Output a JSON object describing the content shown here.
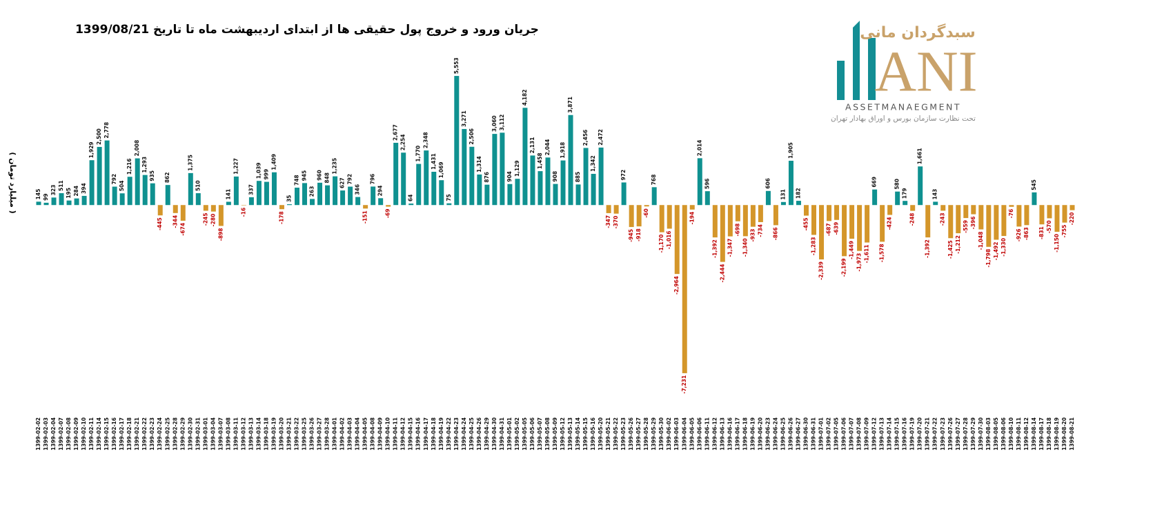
{
  "chart_data": {
    "type": "bar",
    "title": "جریان ورود و خروج پول حقیقی ها از ابتدای اردیبهشت ماه تا تاریخ 1399/08/21",
    "y_label": "( میلیارد تومان )",
    "logo": {
      "brand": "سبدگردان مانی",
      "mark": "ANI",
      "tagline": "ASSETMANAEGMENT",
      "note": "تحت نظارت سازمان بورس و اوراق بهادار تهران"
    },
    "categories": [
      "1399-02-02",
      "1399-02-03",
      "1399-02-04",
      "1399-02-07",
      "1399-02-08",
      "1399-02-09",
      "1399-02-10",
      "1399-02-11",
      "1399-02-14",
      "1399-02-15",
      "1399-02-16",
      "1399-02-17",
      "1399-02-18",
      "1399-02-21",
      "1399-02-22",
      "1399-02-23",
      "1399-02-24",
      "1399-02-25",
      "1399-02-28",
      "1399-02-29",
      "1399-02-30",
      "1399-02-31",
      "1399-03-01",
      "1399-03-04",
      "1399-03-07",
      "1399-03-08",
      "1399-03-11",
      "1399-03-12",
      "1399-03-13",
      "1399-03-14",
      "1399-03-18",
      "1399-03-19",
      "1399-03-20",
      "1399-03-21",
      "1399-03-22",
      "1399-03-25",
      "1399-03-26",
      "1399-03-27",
      "1399-03-28",
      "1399-04-01",
      "1399-04-02",
      "1399-04-03",
      "1399-04-04",
      "1399-04-05",
      "1399-04-08",
      "1399-04-09",
      "1399-04-10",
      "1399-04-11",
      "1399-04-12",
      "1399-04-15",
      "1399-04-16",
      "1399-04-17",
      "1399-04-18",
      "1399-04-19",
      "1399-04-22",
      "1399-04-23",
      "1399-04-24",
      "1399-04-25",
      "1399-04-26",
      "1399-04-29",
      "1399-04-30",
      "1399-04-31",
      "1399-05-01",
      "1399-05-02",
      "1399-05-05",
      "1399-05-06",
      "1399-05-07",
      "1399-05-08",
      "1399-05-09",
      "1399-05-12",
      "1399-05-13",
      "1399-05-14",
      "1399-05-15",
      "1399-05-16",
      "1399-05-20",
      "1399-05-21",
      "1399-05-22",
      "1399-05-23",
      "1399-05-26",
      "1399-05-27",
      "1399-05-28",
      "1399-05-29",
      "1399-05-30",
      "1399-06-02",
      "1399-06-03",
      "1399-06-04",
      "1399-06-05",
      "1399-06-06",
      "1399-06-11",
      "1399-06-12",
      "1399-06-13",
      "1399-06-16",
      "1399-06-17",
      "1399-06-18",
      "1399-06-19",
      "1399-06-20",
      "1399-06-23",
      "1399-06-24",
      "1399-06-25",
      "1399-06-26",
      "1399-06-27",
      "1399-06-30",
      "1399-06-31",
      "1399-07-01",
      "1399-07-02",
      "1399-07-05",
      "1399-07-06",
      "1399-07-07",
      "1399-07-08",
      "1399-07-09",
      "1399-07-12",
      "1399-07-13",
      "1399-07-14",
      "1399-07-15",
      "1399-07-16",
      "1399-07-19",
      "1399-07-20",
      "1399-07-21",
      "1399-07-22",
      "1399-07-23",
      "1399-07-26",
      "1399-07-27",
      "1399-07-28",
      "1399-07-29",
      "1399-07-30",
      "1399-08-03",
      "1399-08-05",
      "1399-08-06",
      "1399-08-10",
      "1399-08-11",
      "1399-08-12",
      "1399-08-14",
      "1399-08-17",
      "1399-08-18",
      "1399-08-19",
      "1399-08-20",
      "1399-08-21"
    ],
    "values": [
      145,
      99,
      323,
      511,
      195,
      284,
      394,
      1929,
      2500,
      2778,
      792,
      504,
      1216,
      2008,
      1293,
      935,
      -445,
      862,
      -344,
      -674,
      1375,
      510,
      -245,
      -280,
      -898,
      141,
      1227,
      -16,
      337,
      1039,
      999,
      1409,
      -178,
      35,
      748,
      945,
      263,
      960,
      848,
      1235,
      627,
      792,
      346,
      -151,
      796,
      294,
      -69,
      2677,
      2254,
      64,
      1770,
      2348,
      1431,
      1069,
      75,
      5553,
      3271,
      2506,
      1314,
      876,
      3060,
      3112,
      904,
      1129,
      4182,
      2131,
      1458,
      2044,
      908,
      1918,
      3871,
      885,
      2456,
      1342,
      2472,
      -347,
      -370,
      972,
      -945,
      -918,
      -60,
      768,
      -1170,
      -1016,
      -2964,
      -7231,
      -194,
      2014,
      596,
      -1392,
      -2444,
      -1347,
      -698,
      -1340,
      -933,
      -734,
      606,
      -866,
      131,
      1905,
      182,
      -455,
      -1283,
      -2339,
      -687,
      -639,
      -2199,
      -1449,
      -1973,
      -1611,
      669,
      -1578,
      -424,
      580,
      179,
      -248,
      1661,
      -1392,
      143,
      -243,
      -1425,
      -1212,
      -559,
      -396,
      -1048,
      -1798,
      -1492,
      -1330,
      -76,
      -926,
      -863,
      545,
      -831,
      -570,
      -1150,
      -755,
      -220
    ],
    "value_labels": [
      "145",
      "99",
      "323",
      "511",
      "195",
      "284",
      "394",
      "1,929",
      "2,500",
      "2,778",
      "792",
      "504",
      "1,216",
      "2,008",
      "1,293",
      "935",
      "-445",
      "862",
      "-344",
      "-674",
      "1,375",
      "510",
      "-245",
      "-280",
      "-898",
      "141",
      "1,227",
      "-16",
      "337",
      "1,039",
      "999",
      "1,409",
      "-178",
      "35",
      "748",
      "945",
      "263",
      "960",
      "848",
      "1,235",
      "627",
      "792",
      "346",
      "-151",
      "796",
      "294",
      "-69",
      "2,677",
      "2,254",
      "64",
      "1,770",
      "2,348",
      "1,431",
      "1,069",
      "75",
      "5,553",
      "3,271",
      "2,506",
      "1,314",
      "876",
      "3,060",
      "3,112",
      "904",
      "1,129",
      "4,182",
      "2,131",
      "1,458",
      "2,044",
      "908",
      "1,918",
      "3,871",
      "885",
      "2,456",
      "1,342",
      "2,472",
      "-347",
      "-370",
      "972",
      "-945",
      "-918",
      "-60",
      "768",
      "-1,170",
      "-1,016",
      "-2,964",
      "-7,231",
      "-194",
      "2,014",
      "596",
      "-1,392",
      "-2,444",
      "-1,347",
      "-698",
      "-1,340",
      "-933",
      "-734",
      "606",
      "-866",
      "131",
      "1,905",
      "182",
      "-455",
      "-1,283",
      "-2,339",
      "-687",
      "-639",
      "-2,199",
      "-1,449",
      "-1,973",
      "-1,611",
      "669",
      "-1,578",
      "-424",
      "580",
      "179",
      "-248",
      "1,661",
      "-1,392",
      "143",
      "-243",
      "-1,425",
      "-1,212",
      "-559",
      "-396",
      "-1,048",
      "-1,798",
      "-1,492",
      "-1,330",
      "-76",
      "-926",
      "-863",
      "545",
      "-831",
      "-570",
      "-1,150",
      "-755",
      "-220"
    ],
    "color_positive": "#0f9190",
    "color_negative": "#d4962a",
    "label_color_positive": "#111111",
    "label_color_negative": "#c00000",
    "ylim": [
      -7500,
      6000
    ],
    "grid": false
  }
}
